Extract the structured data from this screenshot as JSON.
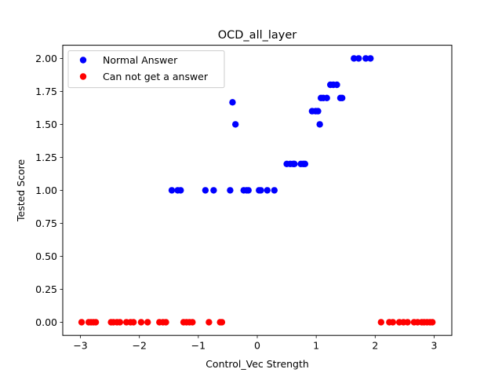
{
  "chart_data": {
    "type": "scatter",
    "title": "OCD_all_layer",
    "xlabel": "Control_Vec Strength",
    "ylabel": "Tested Score",
    "xlim": [
      -3.3,
      3.3
    ],
    "ylim": [
      -0.1,
      2.1
    ],
    "xticks": [
      -3,
      -2,
      -1,
      0,
      1,
      2,
      3
    ],
    "xtick_labels": [
      "−3",
      "−2",
      "−1",
      "0",
      "1",
      "2",
      "3"
    ],
    "yticks": [
      0,
      0.25,
      0.5,
      0.75,
      1.0,
      1.25,
      1.5,
      1.75,
      2.0
    ],
    "ytick_labels": [
      "0.00",
      "0.25",
      "0.50",
      "0.75",
      "1.00",
      "1.25",
      "1.50",
      "1.75",
      "2.00"
    ],
    "grid": false,
    "legend_position": "upper-left",
    "series": [
      {
        "name": "Normal Answer",
        "color": "#0000ff",
        "x": [
          -1.45,
          -1.35,
          -1.3,
          -0.88,
          -0.74,
          -0.46,
          -0.42,
          -0.37,
          -0.23,
          -0.18,
          -0.15,
          0.03,
          0.06,
          0.17,
          0.29,
          0.5,
          0.56,
          0.61,
          0.63,
          0.74,
          0.78,
          0.81,
          0.93,
          0.99,
          1.03,
          1.06,
          1.08,
          1.12,
          1.18,
          1.24,
          1.29,
          1.35,
          1.41,
          1.44,
          1.64,
          1.72,
          1.84,
          1.92
        ],
        "y": [
          1.0,
          1.0,
          1.0,
          1.0,
          1.0,
          1.0,
          1.667,
          1.5,
          1.0,
          1.0,
          1.0,
          1.0,
          1.0,
          1.0,
          1.0,
          1.2,
          1.2,
          1.2,
          1.2,
          1.2,
          1.2,
          1.2,
          1.6,
          1.6,
          1.6,
          1.5,
          1.7,
          1.7,
          1.7,
          1.8,
          1.8,
          1.8,
          1.7,
          1.7,
          2.0,
          2.0,
          2.0,
          2.0
        ]
      },
      {
        "name": "Can not get a answer",
        "color": "#ff0000",
        "x": [
          -2.98,
          -2.86,
          -2.82,
          -2.78,
          -2.74,
          -2.48,
          -2.44,
          -2.38,
          -2.33,
          -2.22,
          -2.15,
          -2.1,
          -1.97,
          -1.86,
          -1.66,
          -1.6,
          -1.55,
          -1.25,
          -1.2,
          -1.15,
          -1.1,
          -0.82,
          -0.63,
          -0.6,
          2.1,
          2.24,
          2.3,
          2.41,
          2.48,
          2.55,
          2.66,
          2.72,
          2.79,
          2.83,
          2.88,
          2.93,
          2.97
        ],
        "y": [
          0,
          0,
          0,
          0,
          0,
          0,
          0,
          0,
          0,
          0,
          0,
          0,
          0,
          0,
          0,
          0,
          0,
          0,
          0,
          0,
          0,
          0,
          0,
          0,
          0,
          0,
          0,
          0,
          0,
          0,
          0,
          0,
          0,
          0,
          0,
          0,
          0
        ]
      }
    ]
  }
}
